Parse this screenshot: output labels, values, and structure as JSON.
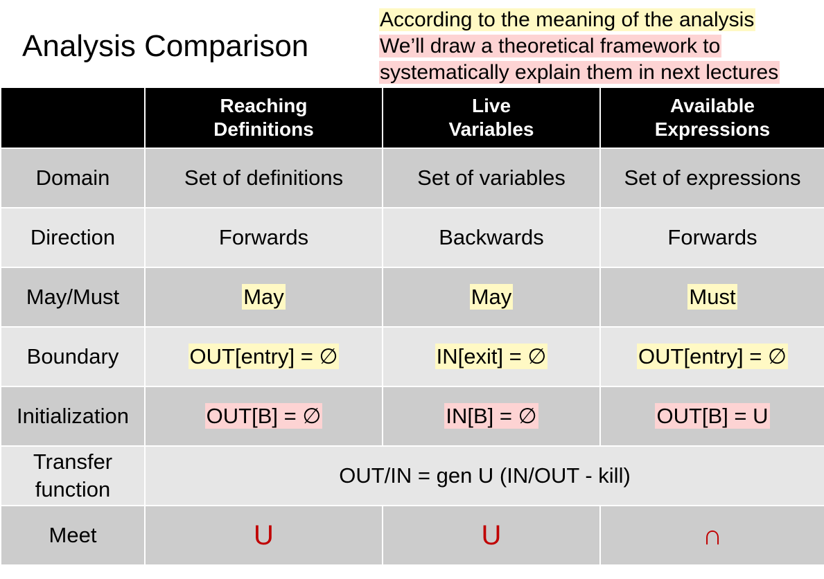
{
  "title": "Analysis Comparison",
  "note": {
    "lines": [
      {
        "text": "According to the meaning of the analysis",
        "highlight": "yellow"
      },
      {
        "text": "We’ll draw a theoretical framework to",
        "highlight": "pink"
      },
      {
        "text": "systematically explain them in next lectures",
        "highlight": "pink"
      }
    ]
  },
  "colors": {
    "header_bg": "#000000",
    "row_dark": "#cccccc",
    "row_light": "#e6e6e6",
    "highlight_yellow": "#fff9c4",
    "highlight_pink": "#fdd3d3",
    "meet_symbol": "#c00000"
  },
  "table": {
    "headers": [
      {
        "line1": "Reaching",
        "line2": "Definitions"
      },
      {
        "line1": "Live",
        "line2": "Variables"
      },
      {
        "line1": "Available",
        "line2": "Expressions"
      }
    ],
    "rows": {
      "domain": {
        "label": "Domain",
        "cells": [
          "Set of definitions",
          "Set of variables",
          "Set of expressions"
        ]
      },
      "direction": {
        "label": "Direction",
        "cells": [
          "Forwards",
          "Backwards",
          "Forwards"
        ]
      },
      "maymust": {
        "label": "May/Must",
        "cells": [
          "May",
          "May",
          "Must"
        ]
      },
      "boundary": {
        "label": "Boundary",
        "cells": [
          "OUT[entry] = ∅",
          "IN[exit] = ∅",
          "OUT[entry] = ∅"
        ]
      },
      "init": {
        "label": "Initialization",
        "cells": [
          "OUT[B] = ∅",
          "IN[B] = ∅",
          "OUT[B] = U"
        ]
      },
      "transfer": {
        "label_line1": "Transfer",
        "label_line2": "function",
        "value": "OUT/IN = gen U (IN/OUT - kill)"
      },
      "meet": {
        "label": "Meet",
        "cells": [
          "U",
          "U",
          "∩"
        ]
      }
    }
  }
}
